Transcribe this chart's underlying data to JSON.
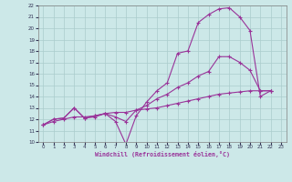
{
  "xlabel": "Windchill (Refroidissement éolien,°C)",
  "bg_color": "#cce8e8",
  "grid_color": "#aacccc",
  "line_color": "#993399",
  "xlim": [
    -0.5,
    23.5
  ],
  "ylim": [
    10,
    22
  ],
  "xticks": [
    0,
    1,
    2,
    3,
    4,
    5,
    6,
    7,
    8,
    9,
    10,
    11,
    12,
    13,
    14,
    15,
    16,
    17,
    18,
    19,
    20,
    21,
    22,
    23
  ],
  "yticks": [
    10,
    11,
    12,
    13,
    14,
    15,
    16,
    17,
    18,
    19,
    20,
    21,
    22
  ],
  "line1_x": [
    0,
    1,
    2,
    3,
    4,
    5,
    6,
    7,
    8,
    9,
    10,
    11,
    12,
    13,
    14,
    15,
    16,
    17,
    18,
    19,
    20,
    21,
    22
  ],
  "line1_y": [
    11.5,
    12.0,
    12.1,
    13.0,
    12.1,
    12.2,
    12.5,
    11.8,
    9.8,
    12.3,
    13.5,
    14.5,
    15.2,
    17.8,
    18.0,
    20.5,
    21.2,
    21.7,
    21.8,
    21.0,
    19.8,
    14.0,
    14.5
  ],
  "line2_x": [
    0,
    1,
    2,
    3,
    4,
    5,
    6,
    7,
    8,
    9,
    10,
    11,
    12,
    13,
    14,
    15,
    16,
    17,
    18,
    19,
    20,
    21,
    22
  ],
  "line2_y": [
    11.5,
    12.0,
    12.1,
    13.0,
    12.1,
    12.3,
    12.5,
    12.2,
    11.8,
    12.8,
    13.2,
    13.8,
    14.2,
    14.8,
    15.2,
    15.8,
    16.2,
    17.5,
    17.5,
    17.0,
    16.3,
    14.5,
    14.5
  ],
  "line3_x": [
    0,
    1,
    2,
    3,
    4,
    5,
    6,
    7,
    8,
    9,
    10,
    11,
    12,
    13,
    14,
    15,
    16,
    17,
    18,
    19,
    20,
    21,
    22
  ],
  "line3_y": [
    11.5,
    11.8,
    12.0,
    12.2,
    12.2,
    12.3,
    12.5,
    12.6,
    12.6,
    12.8,
    12.9,
    13.0,
    13.2,
    13.4,
    13.6,
    13.8,
    14.0,
    14.2,
    14.3,
    14.4,
    14.5,
    14.5,
    14.5
  ]
}
